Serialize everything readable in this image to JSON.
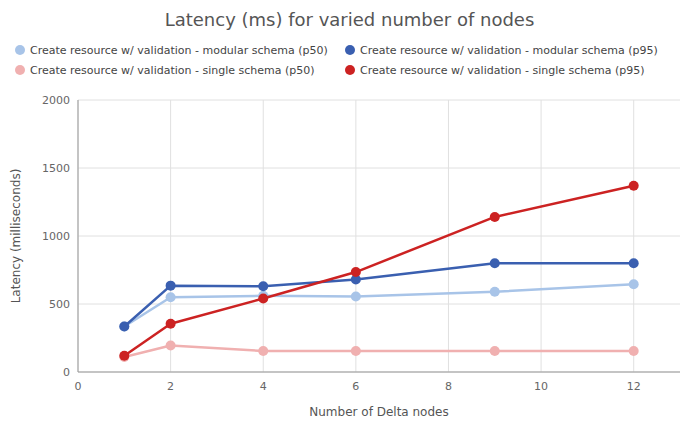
{
  "chart_data": {
    "type": "line",
    "title": "Latency (ms) for varied number of nodes",
    "xlabel": "Number of Delta nodes",
    "ylabel": "Latency (milliseconds)",
    "x": [
      1,
      2,
      4,
      6,
      9,
      12
    ],
    "series": [
      {
        "name": "Create resource w/ validation - modular schema (p50)",
        "color": "#a8c4e8",
        "values": [
          335,
          550,
          560,
          555,
          590,
          645
        ]
      },
      {
        "name": "Create resource w/ validation - modular schema (p95)",
        "color": "#3a5fb0",
        "values": [
          335,
          635,
          630,
          680,
          800,
          800
        ]
      },
      {
        "name": "Create resource w/ validation - single schema (p50)",
        "color": "#f0b0b0",
        "values": [
          110,
          195,
          155,
          155,
          155,
          155
        ]
      },
      {
        "name": "Create resource w/ validation - single schema (p95)",
        "color": "#cc2222",
        "values": [
          120,
          355,
          540,
          735,
          1140,
          1370
        ]
      }
    ],
    "xlim": [
      0,
      13
    ],
    "ylim": [
      0,
      2000
    ],
    "xticks": [
      0,
      2,
      4,
      6,
      8,
      10,
      12
    ],
    "yticks": [
      0,
      500,
      1000,
      1500,
      2000
    ],
    "grid": true,
    "legend": "upper left",
    "marker": "circle"
  }
}
